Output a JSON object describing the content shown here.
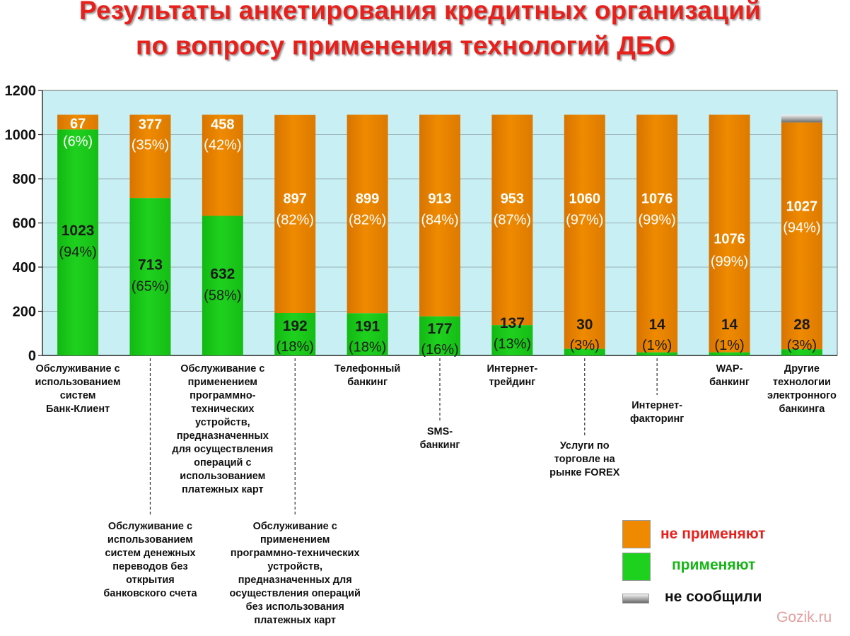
{
  "title": {
    "line1": "Результаты анкетирования кредитных организаций",
    "line2": "по вопросу применения технологий ДБО"
  },
  "colors": {
    "not_applying": "#ef8a00",
    "applying": "#1fd11f",
    "not_reported": "#c8c8c8",
    "plot_bg": "#c8f0f4",
    "title": "#e8201c"
  },
  "legend": {
    "not_applying": "не применяют",
    "applying": "применяют",
    "not_reported": "не сообщили"
  },
  "watermark": "Gozik.ru",
  "chart_data": {
    "type": "bar",
    "stacked": true,
    "ylim": [
      0,
      1200
    ],
    "yticks": [
      "0",
      "200",
      "400",
      "600",
      "800",
      "1000",
      "1200"
    ],
    "grid": true,
    "legend_position": "bottom-right",
    "categories": [
      "Обслуживание с\nиспользованием\nсистем\nБанк-Клиент",
      "Обслуживание с\nиспользованием\nсистем денежных\nпереводов без\nоткрытия\nбанковского счета",
      "Обслуживание с\nприменением\nпрограммно-\nтехнических\nустройств,\nпредназначенных\nдля осуществления\nопераций с\nиспользованием\nплатежных карт",
      "Обслуживание с\nприменением\nпрограммно-технических\nустройств,\nпредназначенных для\nосуществления операций\nбез использования\nплатежных карт",
      "Телефонный\nбанкинг",
      "SMS-\nбанкинг",
      "Интернет-\nтрейдинг",
      "Услуги по\nторговле на\nрынке FOREX",
      "Интернет-\nфакторинг",
      "WAP-\nбанкинг",
      "Другие\nтехнологии\nэлектронного\nбанкинга"
    ],
    "series": [
      {
        "name": "применяют",
        "values": [
          1023,
          713,
          632,
          192,
          191,
          177,
          137,
          30,
          14,
          14,
          28
        ],
        "labels": [
          "1023",
          "713",
          "632",
          "192",
          "191",
          "177",
          "137",
          "30",
          "14",
          "14",
          "28"
        ],
        "percents": [
          "(94%)",
          "(65%)",
          "(58%)",
          "(18%)",
          "(18%)",
          "(16%)",
          "(13%)",
          "(3%)",
          "(1%)",
          "(1%)",
          "(3%)"
        ]
      },
      {
        "name": "не применяют",
        "values": [
          67,
          377,
          458,
          897,
          899,
          913,
          953,
          1060,
          1076,
          1076,
          1027
        ],
        "labels": [
          "67",
          "377",
          "458",
          "897",
          "899",
          "913",
          "953",
          "1060",
          "1076",
          "1076",
          "1027"
        ],
        "percents": [
          "(6%)",
          "(35%)",
          "(42%)",
          "(82%)",
          "(82%)",
          "(84%)",
          "(87%)",
          "(97%)",
          "(99%)",
          "(99%)",
          "(94%)"
        ]
      },
      {
        "name": "не сообщили",
        "values": [
          0,
          0,
          0,
          0,
          0,
          0,
          0,
          0,
          0,
          0,
          35
        ]
      }
    ]
  }
}
